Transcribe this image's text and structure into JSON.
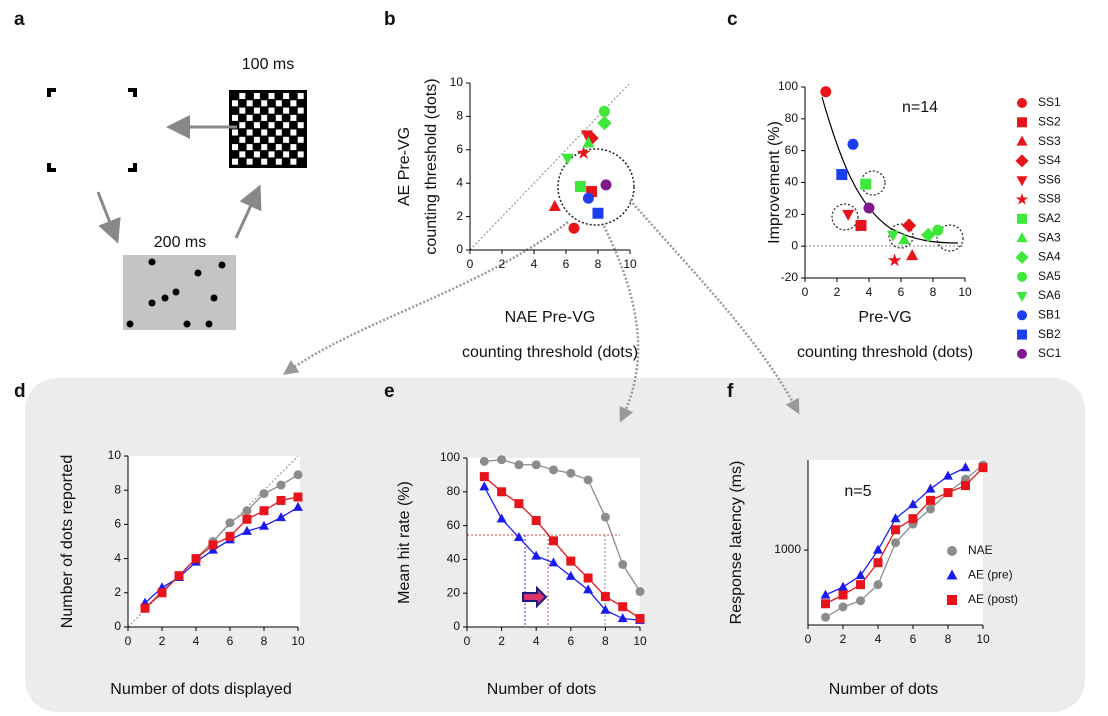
{
  "panel_a": {
    "panel": "a",
    "labels": [
      "100 ms",
      "200 ms"
    ]
  },
  "chart_data": [
    {
      "type": "scatter",
      "panel": "b",
      "ylabel": [
        "AE Pre-VG",
        "counting threshold (dots)"
      ],
      "xlabel": [
        "NAE Pre-VG",
        "counting threshold (dots)"
      ],
      "xlim": [
        0,
        10
      ],
      "ylim": [
        0,
        10
      ],
      "xticks": [
        0,
        2,
        4,
        6,
        8,
        10
      ],
      "yticks": [
        0,
        2,
        4,
        6,
        8,
        10
      ],
      "series": [
        {
          "color": "#e8141b",
          "marker": "circle",
          "x": [
            6.5
          ],
          "values": [
            1.3
          ]
        },
        {
          "color": "#e8141b",
          "marker": "square",
          "x": [
            7.6
          ],
          "values": [
            3.5
          ]
        },
        {
          "color": "#e8141b",
          "marker": "triangle",
          "x": [
            5.3
          ],
          "values": [
            2.6
          ]
        },
        {
          "color": "#e8141b",
          "marker": "diamond",
          "x": [
            7.6
          ],
          "values": [
            6.7
          ]
        },
        {
          "color": "#e8141b",
          "marker": "triangle-down",
          "x": [
            7.3
          ],
          "values": [
            6.9
          ]
        },
        {
          "color": "#e8141b",
          "marker": "star",
          "x": [
            7.1
          ],
          "values": [
            5.8
          ]
        },
        {
          "color": "#3ee83a",
          "marker": "square",
          "x": [
            6.9
          ],
          "values": [
            3.8
          ]
        },
        {
          "color": "#3ee83a",
          "marker": "triangle",
          "x": [
            7.4
          ],
          "values": [
            6.4
          ]
        },
        {
          "color": "#3ee83a",
          "marker": "diamond",
          "x": [
            8.4
          ],
          "values": [
            7.6
          ]
        },
        {
          "color": "#3ee83a",
          "marker": "circle",
          "x": [
            8.4
          ],
          "values": [
            8.3
          ]
        },
        {
          "color": "#3ee83a",
          "marker": "triangle-down",
          "x": [
            6.1
          ],
          "values": [
            5.5
          ]
        },
        {
          "color": "#1b3ff0",
          "marker": "circle",
          "x": [
            7.4
          ],
          "values": [
            3.1
          ]
        },
        {
          "color": "#1b3ff0",
          "marker": "square",
          "x": [
            8.0
          ],
          "values": [
            2.2
          ]
        },
        {
          "color": "#7e1c8c",
          "marker": "circle",
          "x": [
            8.5
          ],
          "values": [
            3.9
          ]
        }
      ]
    },
    {
      "type": "scatter",
      "panel": "c",
      "ylabel": [
        "Improvement (%)"
      ],
      "xlabel": [
        "Pre-VG",
        "counting threshold (dots)"
      ],
      "annotation": "n=14",
      "xlim": [
        0,
        10
      ],
      "ylim": [
        -20,
        100
      ],
      "xticks": [
        0,
        2,
        4,
        6,
        8,
        10
      ],
      "yticks": [
        -20,
        0,
        20,
        40,
        60,
        80,
        100
      ],
      "series": [
        {
          "name": "SS1",
          "color": "#e8141b",
          "marker": "circle",
          "x": [
            1.3
          ],
          "values": [
            97
          ]
        },
        {
          "name": "SS2",
          "color": "#e8141b",
          "marker": "square",
          "x": [
            3.5
          ],
          "values": [
            13
          ]
        },
        {
          "name": "SS3",
          "color": "#e8141b",
          "marker": "triangle",
          "x": [
            6.7
          ],
          "values": [
            -6
          ]
        },
        {
          "name": "SS4",
          "color": "#e8141b",
          "marker": "diamond",
          "x": [
            6.5
          ],
          "values": [
            13
          ]
        },
        {
          "name": "SS6",
          "color": "#e8141b",
          "marker": "triangle-down",
          "x": [
            2.7
          ],
          "values": [
            20
          ]
        },
        {
          "name": "SS8",
          "color": "#e8141b",
          "marker": "star",
          "x": [
            5.6
          ],
          "values": [
            -9
          ]
        },
        {
          "name": "SA2",
          "color": "#3ee83a",
          "marker": "square",
          "x": [
            3.8
          ],
          "values": [
            39
          ]
        },
        {
          "name": "SA3",
          "color": "#3ee83a",
          "marker": "triangle",
          "x": [
            6.2
          ],
          "values": [
            4
          ]
        },
        {
          "name": "SA4",
          "color": "#3ee83a",
          "marker": "diamond",
          "x": [
            7.7
          ],
          "values": [
            7
          ]
        },
        {
          "name": "SA5",
          "color": "#3ee83a",
          "marker": "circle",
          "x": [
            8.3
          ],
          "values": [
            10
          ]
        },
        {
          "name": "SA6",
          "color": "#3ee83a",
          "marker": "triangle-down",
          "x": [
            5.5
          ],
          "values": [
            7
          ]
        },
        {
          "name": "SB1",
          "color": "#1b3ff0",
          "marker": "circle",
          "x": [
            3.0
          ],
          "values": [
            64
          ]
        },
        {
          "name": "SB2",
          "color": "#1b3ff0",
          "marker": "square",
          "x": [
            2.3
          ],
          "values": [
            45
          ]
        },
        {
          "name": "SC1",
          "color": "#7e1c8c",
          "marker": "circle",
          "x": [
            4.0
          ],
          "values": [
            24
          ]
        }
      ]
    },
    {
      "type": "line",
      "panel": "d",
      "ylabel": [
        "Number of dots reported"
      ],
      "xlabel": [
        "Number of dots displayed"
      ],
      "xlim": [
        0,
        10
      ],
      "ylim": [
        0,
        10
      ],
      "xticks": [
        0,
        2,
        4,
        6,
        8,
        10
      ],
      "yticks": [
        0,
        2,
        4,
        6,
        8,
        10
      ],
      "x": [
        1,
        2,
        3,
        4,
        5,
        6,
        7,
        8,
        9,
        10
      ],
      "series": [
        {
          "color": "#8c8c8c",
          "marker": "circle",
          "values": [
            1.1,
            2.1,
            3.0,
            4.0,
            5.0,
            6.1,
            6.8,
            7.8,
            8.3,
            8.9
          ]
        },
        {
          "color": "#1b1bf0",
          "marker": "triangle",
          "values": [
            1.4,
            2.3,
            2.9,
            3.8,
            4.5,
            5.1,
            5.6,
            5.9,
            6.4,
            7.0
          ]
        },
        {
          "color": "#e8141b",
          "marker": "square",
          "values": [
            1.1,
            2.0,
            3.0,
            4.0,
            4.8,
            5.3,
            6.3,
            6.8,
            7.4,
            7.6
          ]
        }
      ]
    },
    {
      "type": "line",
      "panel": "e",
      "ylabel": [
        "Mean hit rate (%)"
      ],
      "xlabel": [
        "Number of dots"
      ],
      "xlim": [
        0,
        10
      ],
      "ylim": [
        0,
        100
      ],
      "xticks": [
        0,
        2,
        4,
        6,
        8,
        10
      ],
      "yticks": [
        0,
        20,
        40,
        60,
        80,
        100
      ],
      "x": [
        1,
        2,
        3,
        4,
        5,
        6,
        7,
        8,
        9,
        10
      ],
      "series": [
        {
          "color": "#8c8c8c",
          "marker": "circle",
          "values": [
            98,
            99,
            96,
            96,
            93,
            91,
            87,
            65,
            37,
            21
          ]
        },
        {
          "color": "#1b1bf0",
          "marker": "triangle",
          "values": [
            83,
            64,
            53,
            42,
            38,
            30,
            22,
            10,
            5,
            4
          ]
        },
        {
          "color": "#e8141b",
          "marker": "square",
          "values": [
            89,
            80,
            73,
            63,
            51,
            39,
            29,
            18,
            12,
            5
          ]
        }
      ]
    },
    {
      "type": "line",
      "panel": "f",
      "ylabel": [
        "Response latency (ms)"
      ],
      "xlabel": [
        "Number of dots"
      ],
      "annotation": "n=5",
      "log_y": true,
      "xlim": [
        0,
        10
      ],
      "ylim": [
        380,
        3200
      ],
      "xticks": [
        0,
        2,
        4,
        6,
        8,
        10
      ],
      "yticks": [
        1000
      ],
      "x": [
        1,
        2,
        3,
        4,
        5,
        6,
        7,
        8,
        9,
        10
      ],
      "series": [
        {
          "name": "NAE",
          "color": "#8c8c8c",
          "marker": "circle",
          "values": [
            420,
            480,
            520,
            640,
            1100,
            1400,
            1700,
            2100,
            2500,
            3000
          ]
        },
        {
          "name": "AE (pre)",
          "color": "#1b1bf0",
          "marker": "triangle",
          "values": [
            560,
            620,
            720,
            1000,
            1500,
            1800,
            2200,
            2600,
            2900,
            null
          ]
        },
        {
          "name": "AE (post)",
          "color": "#e8141b",
          "marker": "square",
          "values": [
            500,
            560,
            640,
            850,
            1300,
            1500,
            1900,
            2100,
            2300,
            2900
          ]
        }
      ]
    }
  ]
}
